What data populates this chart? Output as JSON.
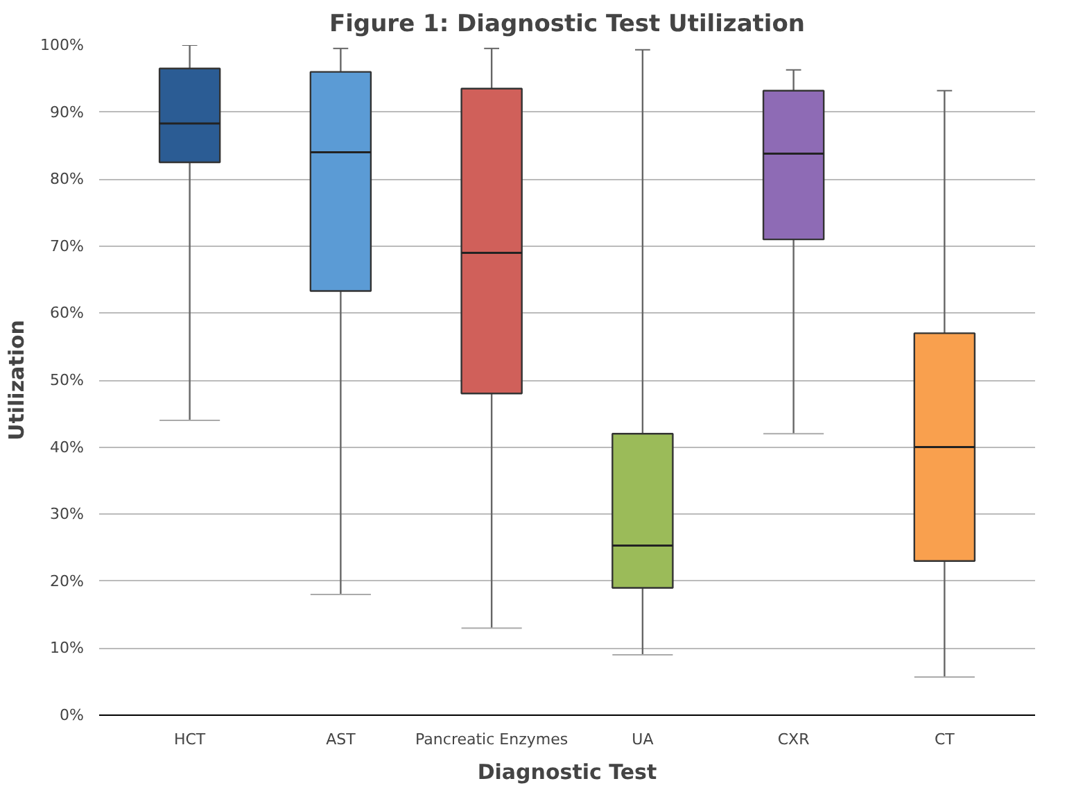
{
  "chart_data": {
    "type": "box",
    "title": "Figure 1: Diagnostic Test Utilization",
    "xlabel": "Diagnostic Test",
    "ylabel": "Utilization",
    "categories": [
      "HCT",
      "AST",
      "Pancreatic Enzymes",
      "UA",
      "CXR",
      "CT"
    ],
    "colors": [
      "#2b5c94",
      "#5b9bd5",
      "#d0605a",
      "#9bbb59",
      "#8e6bb5",
      "#f9a04e"
    ],
    "boxes": [
      {
        "low": 44,
        "q1": 82.5,
        "median": 88.3,
        "q3": 96.5,
        "high": 100
      },
      {
        "low": 18,
        "q1": 63.3,
        "median": 84,
        "q3": 96,
        "high": 99.5
      },
      {
        "low": 13,
        "q1": 48,
        "median": 69,
        "q3": 93.5,
        "high": 99.5
      },
      {
        "low": 9,
        "q1": 19,
        "median": 25.3,
        "q3": 42,
        "high": 99.3
      },
      {
        "low": 42,
        "q1": 71,
        "median": 83.8,
        "q3": 93.2,
        "high": 96.3
      },
      {
        "low": 5.7,
        "q1": 23,
        "median": 40,
        "q3": 57,
        "high": 93.2
      }
    ],
    "ylim": [
      0,
      100
    ],
    "yticks": [
      {
        "value": 0,
        "label": "0%"
      },
      {
        "value": 10,
        "label": "10%"
      },
      {
        "value": 20,
        "label": "20%"
      },
      {
        "value": 30,
        "label": "30%"
      },
      {
        "value": 40,
        "label": "40%"
      },
      {
        "value": 50,
        "label": "50%"
      },
      {
        "value": 60,
        "label": "60%"
      },
      {
        "value": 70,
        "label": "70%"
      },
      {
        "value": 80,
        "label": "80%"
      },
      {
        "value": 90,
        "label": "90%"
      },
      {
        "value": 100,
        "label": "100%"
      }
    ],
    "grid": "y"
  }
}
